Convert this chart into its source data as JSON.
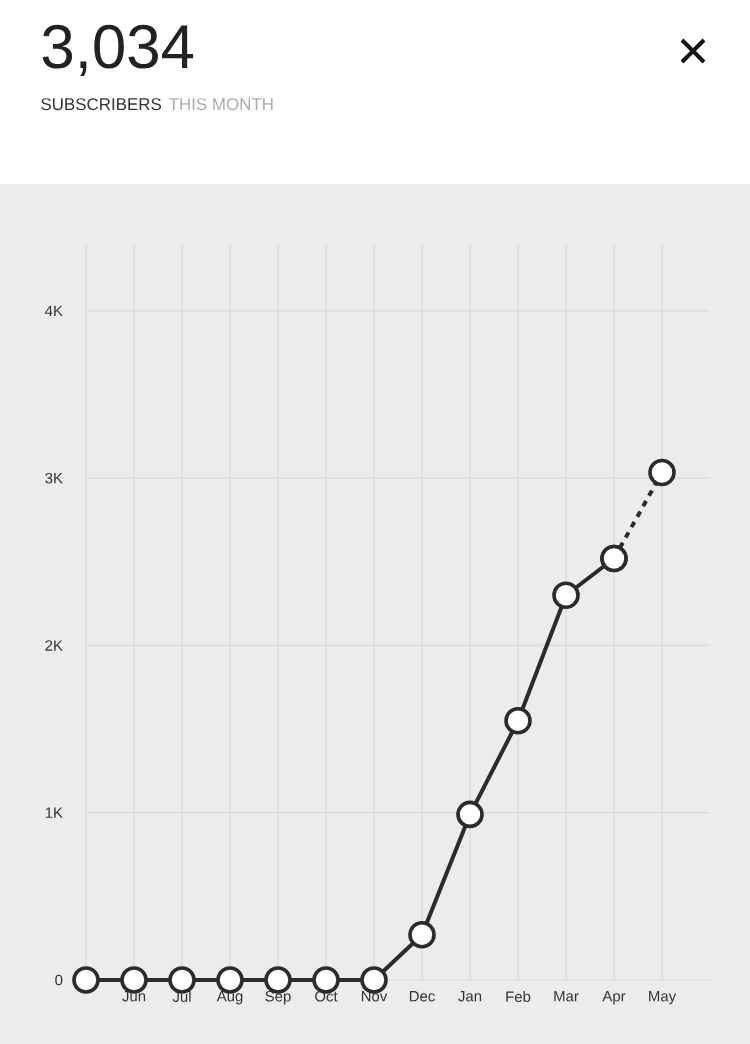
{
  "chart_data": {
    "type": "line",
    "title": "3,034",
    "subtitle": "SUBSCRIBERS",
    "annotations": [
      "THIS MONTH"
    ],
    "categories": [
      null,
      "Jun",
      "Jul",
      "Aug",
      "Sep",
      "Oct",
      "Nov",
      "Dec",
      "Jan",
      "Feb",
      "Mar",
      "Apr",
      "May"
    ],
    "series": [
      {
        "color": "#2b2b2b",
        "line_style": "solid",
        "values": [
          0,
          0,
          0,
          0,
          0,
          0,
          0,
          270,
          990,
          1550,
          2300,
          2520,
          null
        ]
      },
      {
        "color": "#2b2b2b",
        "line_style": "dashed",
        "values": [
          null,
          null,
          null,
          null,
          null,
          null,
          null,
          null,
          null,
          null,
          null,
          2520,
          3034
        ]
      }
    ],
    "ylim": [
      0,
      4400
    ],
    "yticks": [
      {
        "value": 0,
        "label": "0"
      },
      {
        "value": 1000,
        "label": "1K"
      },
      {
        "value": 2000,
        "label": "2K"
      },
      {
        "value": 3000,
        "label": "3K"
      },
      {
        "value": 4000,
        "label": "4K"
      }
    ],
    "grid": true,
    "marker": "circle",
    "legend": false
  }
}
